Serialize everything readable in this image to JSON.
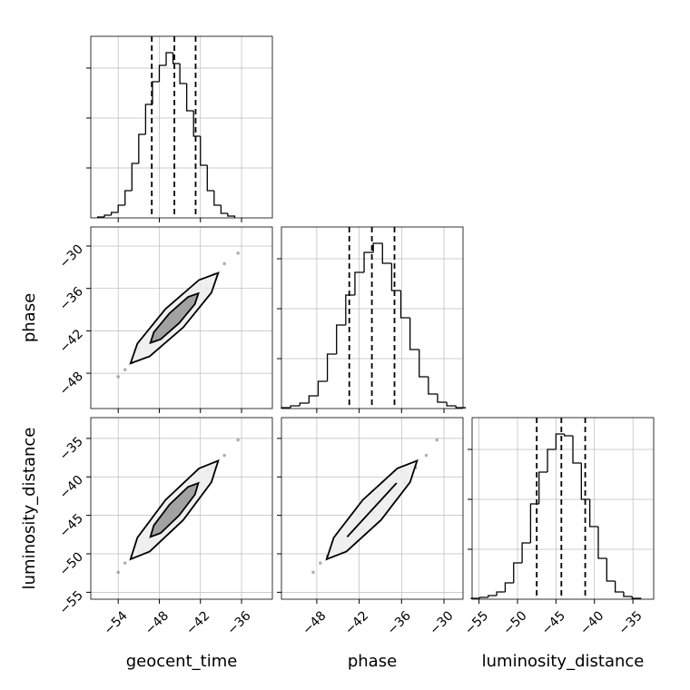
{
  "chart_data": {
    "type": "corner",
    "grid": true,
    "params": [
      {
        "label": "geocent_time",
        "lim": [
          -58,
          -31.5
        ],
        "ticks": [
          {
            "value": -54,
            "label": "−54"
          },
          {
            "value": -48,
            "label": "−48"
          },
          {
            "value": -42,
            "label": "−42"
          },
          {
            "value": -36,
            "label": "−36"
          }
        ],
        "quantiles": [
          -49.1,
          -45.8,
          -42.7
        ],
        "bins": [
          -57,
          -56,
          -55,
          -54,
          -53,
          -52,
          -51,
          -50,
          -49,
          -48,
          -47,
          -46,
          -45,
          -44,
          -43,
          -42,
          -41,
          -40,
          -39,
          -38,
          -37
        ],
        "counts": [
          10,
          30,
          60,
          140,
          300,
          600,
          920,
          1250,
          1500,
          1680,
          1820,
          1700,
          1480,
          1180,
          900,
          580,
          300,
          140,
          50,
          20
        ],
        "samples": [
          -52,
          -50.5,
          -49,
          -48,
          -47,
          -46,
          -45,
          -44,
          -43,
          -42,
          -41,
          -40,
          -38.5,
          -54,
          -51,
          -44.5,
          -36.5,
          -53
        ]
      },
      {
        "label": "phase",
        "lim": [
          -53,
          -27.3
        ],
        "ticks": [
          {
            "value": -48,
            "label": "−48"
          },
          {
            "value": -42,
            "label": "−42"
          },
          {
            "value": -36,
            "label": "−36"
          },
          {
            "value": -30,
            "label": "−30"
          }
        ],
        "quantiles": [
          -43.4,
          -40.2,
          -37.0
        ],
        "bins": [
          -53,
          -51.7,
          -50.4,
          -49.1,
          -47.8,
          -46.5,
          -45.2,
          -43.9,
          -42.6,
          -41.3,
          -40,
          -38.7,
          -37.4,
          -36.1,
          -34.8,
          -33.5,
          -32.2,
          -30.9,
          -29.6,
          -28.3,
          -27
        ],
        "counts": [
          10,
          30,
          60,
          140,
          300,
          600,
          920,
          1250,
          1500,
          1720,
          1820,
          1600,
          1300,
          1000,
          650,
          350,
          160,
          70,
          30,
          10
        ],
        "samples": [
          -46.5,
          -45.8,
          -43,
          -41.5,
          -42,
          -40,
          -39.8,
          -38,
          -37.6,
          -35.5,
          -35.9,
          -34,
          -32.5,
          -48.5,
          -44.5,
          -39.5,
          -31,
          -47.5
        ]
      },
      {
        "label": "luminosity_distance",
        "lim": [
          -55.9,
          -32.3
        ],
        "ticks": [
          {
            "value": -55,
            "label": "−55"
          },
          {
            "value": -50,
            "label": "−50"
          },
          {
            "value": -45,
            "label": "−45"
          },
          {
            "value": -40,
            "label": "−40"
          },
          {
            "value": -35,
            "label": "−35"
          }
        ],
        "quantiles": [
          -47.5,
          -44.3,
          -41.2
        ],
        "bins": [
          -56,
          -54.9,
          -53.8,
          -52.7,
          -51.6,
          -50.5,
          -49.4,
          -48.3,
          -47.2,
          -46.1,
          -45,
          -43.9,
          -42.8,
          -41.7,
          -40.6,
          -39.5,
          -38.4,
          -37.3,
          -36.2,
          -35.1,
          -34
        ],
        "counts": [
          10,
          20,
          40,
          80,
          180,
          400,
          620,
          1050,
          1400,
          1650,
          1820,
          1800,
          1500,
          1100,
          800,
          450,
          200,
          80,
          30,
          10
        ],
        "samples": [
          -50.3,
          -49.5,
          -47.2,
          -46.8,
          -45,
          -44.6,
          -43.2,
          -42.9,
          -41.2,
          -40.8,
          -39.2,
          -38.8,
          -37.2,
          -52.4,
          -49.8,
          -43.5,
          -35.2,
          -51.2
        ]
      }
    ],
    "hist_ylim": [
      0,
      2000
    ],
    "hist_yticks": [
      550,
      1100,
      1650
    ],
    "contours": [
      [
        {
          "x": [
            -39.4,
            -42.2,
            -47.1,
            -51.2,
            -52.2,
            -49.4,
            -44.5,
            -40.4
          ],
          "y": [
            -33.8,
            -34.8,
            -38.9,
            -43.8,
            -46.6,
            -45.6,
            -41.5,
            -36.6
          ]
        },
        {
          "x": [
            -42.3,
            -43.8,
            -46.5,
            -48.8,
            -49.3,
            -47.8,
            -45.1,
            -42.8
          ],
          "y": [
            -36.7,
            -37.2,
            -39.5,
            -42.2,
            -43.7,
            -43.2,
            -40.9,
            -38.2
          ]
        }
      ],
      [
        {
          "x": [
            -39.4,
            -42.2,
            -47.1,
            -51.2,
            -52.2,
            -49.4,
            -44.5,
            -40.4
          ],
          "y": [
            -37.9,
            -38.9,
            -43.0,
            -47.9,
            -50.7,
            -49.7,
            -45.6,
            -40.7
          ]
        },
        {
          "x": [
            -42.3,
            -43.8,
            -46.5,
            -48.8,
            -49.3,
            -47.8,
            -45.1,
            -42.8
          ],
          "y": [
            -40.8,
            -41.3,
            -43.6,
            -46.3,
            -47.8,
            -47.3,
            -45.0,
            -42.3
          ]
        }
      ],
      [
        {
          "x": [
            -33.8,
            -36.6,
            -41.5,
            -45.6,
            -46.6,
            -43.8,
            -38.9,
            -34.8
          ],
          "y": [
            -37.9,
            -38.9,
            -43.0,
            -47.9,
            -50.7,
            -49.7,
            -45.6,
            -40.7
          ]
        },
        {
          "x": [
            -36.7,
            -37.2,
            -39.5,
            -42.2,
            -43.7,
            -43.2,
            -40.9,
            -38.2
          ],
          "y": [
            -40.8,
            -41.3,
            -43.6,
            -46.3,
            -47.8,
            -47.3,
            -45.0,
            -42.3
          ]
        }
      ]
    ]
  }
}
